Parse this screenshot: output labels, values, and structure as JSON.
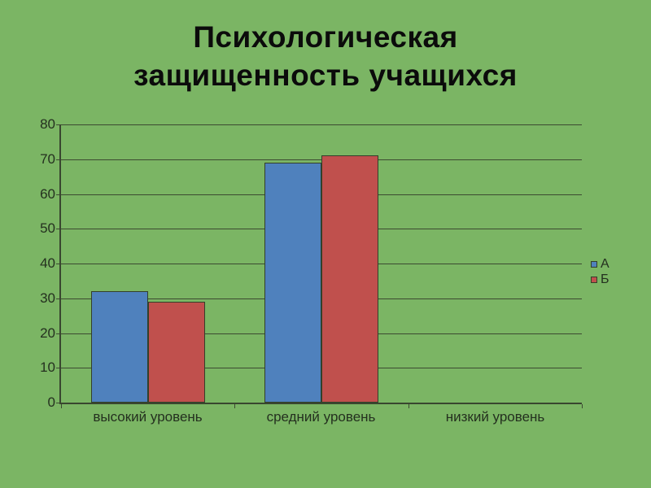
{
  "slide": {
    "background_color": "#7bb564",
    "title_line1": "Психологическая",
    "title_line2": "защищенность учащихся"
  },
  "chart_data": {
    "type": "bar",
    "title": "Психологическая защищенность учащихся",
    "categories": [
      "высокий уровень",
      "средний уровень",
      "низкий уровень"
    ],
    "series": [
      {
        "name": "А",
        "color": "#4f81bd",
        "values": [
          32,
          69,
          0
        ]
      },
      {
        "name": "Б",
        "color": "#c0504d",
        "values": [
          29,
          71,
          0
        ]
      }
    ],
    "xlabel": "",
    "ylabel": "",
    "ylim": [
      0,
      80
    ],
    "yticks": [
      0,
      10,
      20,
      30,
      40,
      50,
      60,
      70,
      80
    ],
    "grid": true,
    "legend_position": "right",
    "gridline_color": "#3c4a31",
    "axis_color": "#39462f",
    "label_color": "#24301f"
  }
}
